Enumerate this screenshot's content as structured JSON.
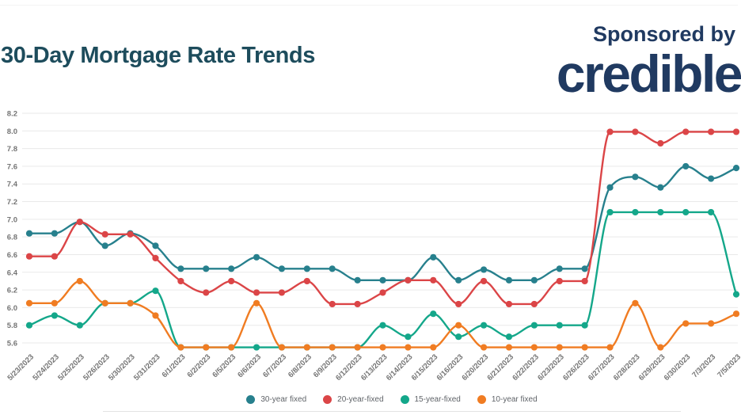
{
  "header": {
    "title": "30-Day Mortgage Rate Trends",
    "sponsored_by": "Sponsored by",
    "sponsor_name": "credible"
  },
  "colors": {
    "title": "#1d4c5c",
    "sponsor": "#203a61",
    "axis_label": "#757575",
    "gridline": "#e9e9e9",
    "legend_text": "#5f6368",
    "background": "#ffffff"
  },
  "chart_data": {
    "type": "line",
    "title": "30-Day Mortgage Rate Trends",
    "grid": true,
    "legend_position": "bottom",
    "ylim": [
      5.6,
      8.2
    ],
    "y_ticks": [
      "8.2",
      "8.0",
      "7.8",
      "7.6",
      "7.4",
      "7.2",
      "7.0",
      "6.8",
      "6.6",
      "6.4",
      "6.2",
      "6.0",
      "5.8",
      "5.6"
    ],
    "x_categories": [
      "5/23/2023",
      "5/24/2023",
      "5/25/2023",
      "5/26/2023",
      "5/30/2023",
      "5/31/2023",
      "6/1/2023",
      "6/2/2023",
      "6/5/2023",
      "6/6/2023",
      "6/7/2023",
      "6/8/2023",
      "6/9/2023",
      "6/12/2023",
      "6/13/2023",
      "6/14/2023",
      "6/15/2023",
      "6/16/2023",
      "6/20/2023",
      "6/21/2023",
      "6/22/2023",
      "6/23/2023",
      "6/26/2023",
      "6/27/2023",
      "6/28/2023",
      "6/29/2023",
      "6/30/2023",
      "7/3/2023",
      "7/5/2023"
    ],
    "series": [
      {
        "name": "30-year fixed",
        "color": "#27808d",
        "values": [
          6.84,
          6.84,
          6.97,
          6.7,
          6.84,
          6.7,
          6.44,
          6.44,
          6.44,
          6.57,
          6.44,
          6.44,
          6.44,
          6.31,
          6.31,
          6.31,
          6.57,
          6.31,
          6.43,
          6.31,
          6.31,
          6.44,
          6.44,
          7.36,
          7.48,
          7.36,
          7.6,
          7.46,
          7.58
        ]
      },
      {
        "name": "20-year-fixed",
        "color": "#db4547",
        "values": [
          6.58,
          6.58,
          6.97,
          6.83,
          6.83,
          6.56,
          6.3,
          6.17,
          6.3,
          6.17,
          6.17,
          6.3,
          6.04,
          6.04,
          6.17,
          6.31,
          6.31,
          6.04,
          6.3,
          6.04,
          6.04,
          6.3,
          6.3,
          7.99,
          7.99,
          7.86,
          7.99,
          7.99,
          7.99
        ]
      },
      {
        "name": "15-year-fixed",
        "color": "#14a78a",
        "values": [
          5.8,
          5.91,
          5.8,
          6.05,
          6.05,
          6.19,
          5.55,
          5.55,
          5.55,
          5.55,
          5.55,
          5.55,
          5.55,
          5.55,
          5.8,
          5.67,
          5.93,
          5.67,
          5.8,
          5.67,
          5.8,
          5.8,
          5.8,
          7.08,
          7.08,
          7.08,
          7.08,
          7.08,
          6.15
        ]
      },
      {
        "name": "10-year fixed",
        "color": "#f07c22",
        "values": [
          6.05,
          6.05,
          6.3,
          6.05,
          6.05,
          5.91,
          5.55,
          5.55,
          5.55,
          6.05,
          5.55,
          5.55,
          5.55,
          5.55,
          5.55,
          5.55,
          5.55,
          5.8,
          5.55,
          5.55,
          5.55,
          5.55,
          5.55,
          5.55,
          6.05,
          5.55,
          5.82,
          5.82,
          5.93
        ]
      }
    ]
  }
}
